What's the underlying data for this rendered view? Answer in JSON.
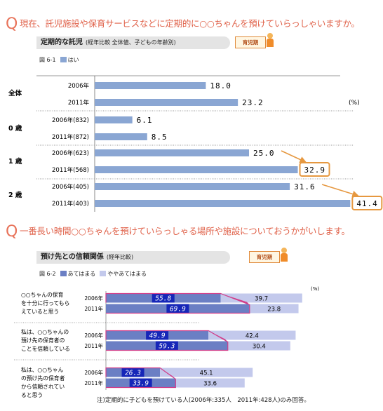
{
  "q1": {
    "mark": "Q",
    "text": "現在、託児施設や保育サービスなどに定期的に○○ちゃんを預けていらっしゃいますか。"
  },
  "section1": {
    "title": "定期的な託児",
    "subtitle": "(経年比較  全体値、子どもの年齢別)",
    "badge": "育児期"
  },
  "chart1_legend": {
    "fig": "図 6-1",
    "label": "はい"
  },
  "q2": {
    "mark": "Q",
    "text": "一番長い時間○○ちゃんを預けていらっしゃる場所や施設についておうかがいします。"
  },
  "section2": {
    "title": "預け先との信頼関係",
    "subtitle": "(経年比較)",
    "badge": "育児期"
  },
  "chart2_legend": {
    "fig": "図 6-2",
    "label1": "あてはまる",
    "label2": "ややあてはまる"
  },
  "colors": {
    "bar": "#8aa6d3",
    "dark": "#6b7fc4",
    "light": "#c3c9ec",
    "highlight": "#e69840",
    "accent": "#d13f8a"
  },
  "chart_data": [
    {
      "type": "bar",
      "orientation": "horizontal",
      "unit_label": "(%)",
      "groups": [
        {
          "name": "全体",
          "rows": [
            {
              "label": "2006年",
              "value": 18.0
            },
            {
              "label": "2011年",
              "value": 23.2
            }
          ]
        },
        {
          "name": "0 歳",
          "rows": [
            {
              "label": "2006年(832)",
              "value": 6.1
            },
            {
              "label": "2011年(872)",
              "value": 8.5
            }
          ]
        },
        {
          "name": "1 歳",
          "rows": [
            {
              "label": "2006年(623)",
              "value": 25.0
            },
            {
              "label": "2011年(568)",
              "value": 32.9
            }
          ]
        },
        {
          "name": "2 歳",
          "rows": [
            {
              "label": "2006年(405)",
              "value": 31.6
            },
            {
              "label": "2011年(403)",
              "value": 41.4
            }
          ]
        }
      ],
      "highlighted": [
        32.9,
        41.4
      ],
      "series": [
        {
          "name": "はい"
        }
      ],
      "xlim": [
        0,
        42
      ]
    },
    {
      "type": "bar",
      "orientation": "horizontal",
      "stacked": true,
      "unit_label": "(%)",
      "series": [
        {
          "name": "あてはまる"
        },
        {
          "name": "ややあてはまる"
        }
      ],
      "groups": [
        {
          "name": [
            "○○ちゃんの保育",
            "を十分に行ってもら",
            "えていると思う"
          ],
          "rows": [
            {
              "label": "2006年",
              "values": [
                55.8,
                39.7
              ]
            },
            {
              "label": "2011年",
              "values": [
                69.9,
                23.8
              ]
            }
          ]
        },
        {
          "name": [
            "私は、○○ちゃんの",
            "預け先の保育者の",
            "ことを信頼している"
          ],
          "rows": [
            {
              "label": "2006年",
              "values": [
                49.9,
                42.4
              ]
            },
            {
              "label": "2011年",
              "values": [
                59.3,
                30.4
              ]
            }
          ]
        },
        {
          "name": [
            "私は、○○ちゃん",
            "の預け先の保育者",
            "から信頼されてい",
            "ると思う"
          ],
          "rows": [
            {
              "label": "2006年",
              "values": [
                26.3,
                45.1
              ]
            },
            {
              "label": "2011年",
              "values": [
                33.9,
                33.6
              ]
            }
          ]
        }
      ],
      "xlim": [
        0,
        100
      ]
    }
  ],
  "note": "注)定期的に子どもを預けている人(2006年:335人　2011年:428人)のみ回答。"
}
